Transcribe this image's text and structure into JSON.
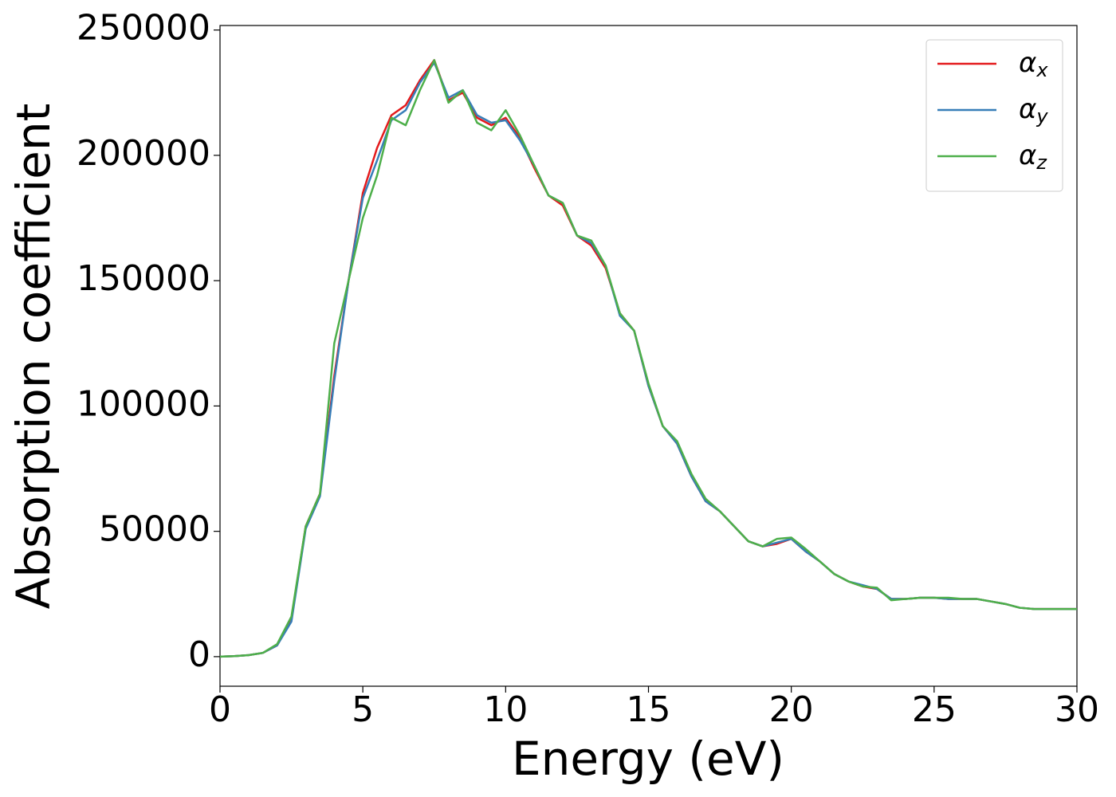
{
  "chart_data": {
    "type": "line",
    "xlabel": "Energy (eV)",
    "ylabel": "Absorption coefficient",
    "x": [
      0,
      0.5,
      1,
      1.5,
      2,
      2.5,
      3,
      3.5,
      4,
      4.5,
      5,
      5.5,
      6,
      6.5,
      7,
      7.5,
      8,
      8.5,
      9,
      9.5,
      10,
      10.5,
      11,
      11.5,
      12,
      12.5,
      13,
      13.5,
      14,
      14.5,
      15,
      15.5,
      16,
      16.5,
      17,
      17.5,
      18,
      18.5,
      19,
      19.5,
      20,
      20.5,
      21,
      21.5,
      22,
      22.5,
      23,
      23.5,
      24,
      24.5,
      25,
      25.5,
      26,
      26.5,
      27,
      27.5,
      28,
      28.5,
      29,
      29.5,
      30
    ],
    "series": [
      {
        "name": "αx",
        "color": "#e41a1c",
        "values": [
          0,
          200,
          600,
          1500,
          4500,
          15000,
          52000,
          65000,
          112000,
          150000,
          185000,
          203000,
          216000,
          220000,
          230000,
          238000,
          222000,
          225000,
          215000,
          212000,
          215000,
          207000,
          195000,
          184000,
          180000,
          168000,
          164000,
          155000,
          137000,
          130000,
          108000,
          92000,
          85000,
          72000,
          62000,
          58000,
          52000,
          46000,
          44000,
          45000,
          47000,
          42000,
          38000,
          33000,
          30000,
          28000,
          27000,
          23000,
          23000,
          23500,
          23500,
          23000,
          23000,
          23000,
          22000,
          21000,
          19500,
          19000,
          19000,
          19000,
          19000
        ]
      },
      {
        "name": "αy",
        "color": "#377eb8",
        "values": [
          0,
          200,
          600,
          1500,
          4500,
          14000,
          51000,
          64000,
          110000,
          150000,
          183000,
          198000,
          214000,
          218000,
          229000,
          237000,
          223000,
          226000,
          216000,
          213000,
          214000,
          206000,
          196000,
          184000,
          181000,
          168000,
          165000,
          156000,
          136000,
          130000,
          108000,
          92000,
          85000,
          72000,
          62000,
          58000,
          52000,
          46000,
          44000,
          45500,
          47000,
          42000,
          38000,
          33000,
          30000,
          28500,
          27000,
          23000,
          23000,
          23500,
          23500,
          23000,
          23000,
          23000,
          22000,
          21000,
          19500,
          19000,
          19000,
          19000,
          19000
        ]
      },
      {
        "name": "αz",
        "color": "#4daf4a",
        "values": [
          0,
          200,
          600,
          1500,
          5000,
          16000,
          52000,
          65000,
          125000,
          150000,
          175000,
          192000,
          215000,
          212000,
          226000,
          238000,
          221000,
          226000,
          213000,
          210000,
          218000,
          208000,
          196000,
          184000,
          181000,
          168000,
          166000,
          156000,
          137000,
          130000,
          109000,
          92000,
          86000,
          73000,
          63000,
          58000,
          52000,
          46000,
          44000,
          47000,
          47500,
          43000,
          38000,
          33000,
          30000,
          28000,
          27500,
          22500,
          23000,
          23500,
          23500,
          23500,
          23000,
          23000,
          22000,
          21000,
          19500,
          19000,
          19000,
          19000,
          19000
        ]
      }
    ],
    "xlim": [
      0,
      30
    ],
    "xticks": [
      0,
      5,
      10,
      15,
      20,
      25,
      30
    ],
    "ylim": [
      -11800,
      251800
    ],
    "yticks": [
      0,
      50000,
      100000,
      150000,
      200000,
      250000
    ],
    "legend": "upper right",
    "grid": false
  }
}
